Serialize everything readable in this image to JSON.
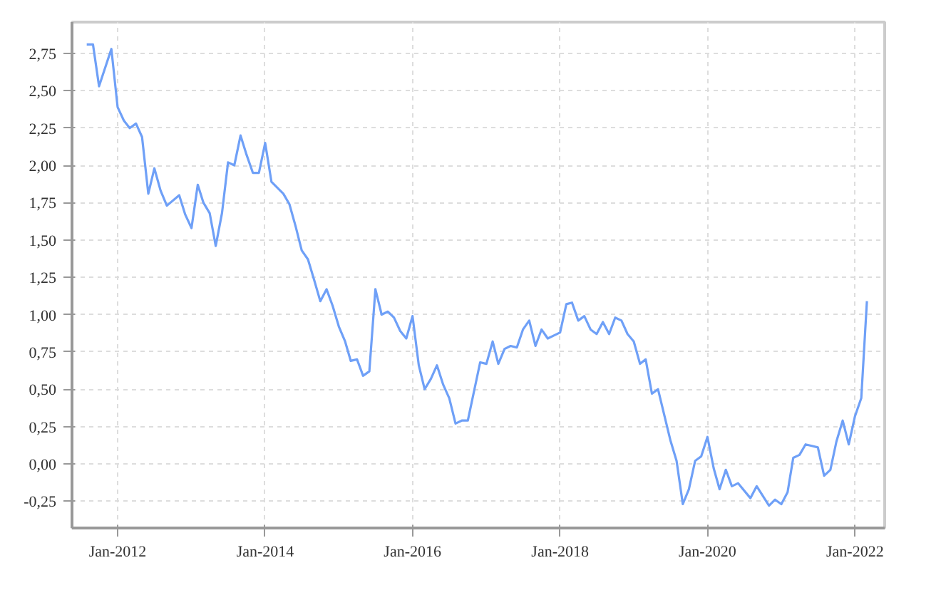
{
  "chart_data": {
    "type": "line",
    "x": [
      "2011-08",
      "2011-09",
      "2011-10",
      "2011-12",
      "2012-01",
      "2012-02",
      "2012-03",
      "2012-04",
      "2012-05",
      "2012-06",
      "2012-07",
      "2012-08",
      "2012-09",
      "2012-11",
      "2012-12",
      "2013-01",
      "2013-02",
      "2013-03",
      "2013-04",
      "2013-05",
      "2013-06",
      "2013-07",
      "2013-08",
      "2013-09",
      "2013-10",
      "2013-11",
      "2013-12",
      "2014-01",
      "2014-02",
      "2014-04",
      "2014-05",
      "2014-06",
      "2014-07",
      "2014-08",
      "2014-09",
      "2014-10",
      "2014-11",
      "2014-12",
      "2015-01",
      "2015-02",
      "2015-03",
      "2015-04",
      "2015-05",
      "2015-06",
      "2015-07",
      "2015-08",
      "2015-09",
      "2015-10",
      "2015-11",
      "2015-12",
      "2016-01",
      "2016-02",
      "2016-03",
      "2016-04",
      "2016-05",
      "2016-06",
      "2016-07",
      "2016-08",
      "2016-09",
      "2016-10",
      "2016-12",
      "2017-01",
      "2017-02",
      "2017-03",
      "2017-04",
      "2017-05",
      "2017-06",
      "2017-07",
      "2017-08",
      "2017-09",
      "2017-10",
      "2017-11",
      "2017-12",
      "2018-01",
      "2018-02",
      "2018-03",
      "2018-04",
      "2018-05",
      "2018-06",
      "2018-07",
      "2018-08",
      "2018-09",
      "2018-10",
      "2018-11",
      "2018-12",
      "2019-01",
      "2019-02",
      "2019-03",
      "2019-04",
      "2019-05",
      "2019-07",
      "2019-08",
      "2019-09",
      "2019-10",
      "2019-11",
      "2019-12",
      "2020-01",
      "2020-02",
      "2020-03",
      "2020-04",
      "2020-05",
      "2020-06",
      "2020-08",
      "2020-09",
      "2020-11",
      "2020-12",
      "2021-01",
      "2021-02",
      "2021-03",
      "2021-04",
      "2021-05",
      "2021-06",
      "2021-07",
      "2021-08",
      "2021-09",
      "2021-10",
      "2021-11",
      "2021-12",
      "2022-01",
      "2022-02",
      "2022-03"
    ],
    "series": [
      {
        "color": "#6fa0f7",
        "values": [
          2.81,
          2.81,
          2.53,
          2.78,
          2.39,
          2.3,
          2.25,
          2.28,
          2.19,
          1.81,
          1.98,
          1.83,
          1.73,
          1.8,
          1.67,
          1.58,
          1.87,
          1.75,
          1.68,
          1.46,
          1.68,
          2.02,
          2.0,
          2.2,
          2.07,
          1.95,
          1.95,
          2.15,
          1.89,
          1.81,
          1.74,
          1.59,
          1.43,
          1.37,
          1.23,
          1.09,
          1.17,
          1.06,
          0.92,
          0.82,
          0.69,
          0.7,
          0.59,
          0.62,
          1.17,
          1.0,
          1.02,
          0.98,
          0.89,
          0.84,
          0.99,
          0.66,
          0.5,
          0.57,
          0.66,
          0.53,
          0.44,
          0.27,
          0.29,
          0.29,
          0.68,
          0.67,
          0.82,
          0.67,
          0.77,
          0.79,
          0.78,
          0.9,
          0.96,
          0.79,
          0.9,
          0.84,
          0.86,
          0.88,
          1.07,
          1.08,
          0.96,
          0.99,
          0.9,
          0.87,
          0.95,
          0.87,
          0.98,
          0.96,
          0.87,
          0.82,
          0.67,
          0.7,
          0.47,
          0.5,
          0.16,
          0.02,
          -0.27,
          -0.17,
          0.02,
          0.05,
          0.18,
          -0.03,
          -0.17,
          -0.04,
          -0.15,
          -0.13,
          -0.23,
          -0.15,
          -0.28,
          -0.24,
          -0.27,
          -0.19,
          0.04,
          0.06,
          0.13,
          0.12,
          0.11,
          -0.08,
          -0.04,
          0.15,
          0.29,
          0.13,
          0.32,
          0.44,
          1.09
        ]
      }
    ],
    "xlim": [
      "2011-05-20",
      "2022-05-28"
    ],
    "xticks": [
      {
        "value": "2012-01",
        "label": "Jan-2012"
      },
      {
        "value": "2014-01",
        "label": "Jan-2014"
      },
      {
        "value": "2016-01",
        "label": "Jan-2016"
      },
      {
        "value": "2018-01",
        "label": "Jan-2018"
      },
      {
        "value": "2020-01",
        "label": "Jan-2020"
      },
      {
        "value": "2022-01",
        "label": "Jan-2022"
      }
    ],
    "ylim": [
      -0.43,
      2.96
    ],
    "yticks": [
      {
        "value": -0.25,
        "label": "-0,25"
      },
      {
        "value": 0,
        "label": "0,00"
      },
      {
        "value": 0.25,
        "label": "0,25"
      },
      {
        "value": 0.5,
        "label": "0,50"
      },
      {
        "value": 0.75,
        "label": "0,75"
      },
      {
        "value": 1,
        "label": "1,00"
      },
      {
        "value": 1.25,
        "label": "1,25"
      },
      {
        "value": 1.5,
        "label": "1,50"
      },
      {
        "value": 1.75,
        "label": "1,75"
      },
      {
        "value": 2,
        "label": "2,00"
      },
      {
        "value": 2.25,
        "label": "2,25"
      },
      {
        "value": 2.5,
        "label": "2,50"
      },
      {
        "value": 2.75,
        "label": "2,75"
      }
    ],
    "grid": true,
    "marker": "none",
    "line_style": "solid"
  }
}
